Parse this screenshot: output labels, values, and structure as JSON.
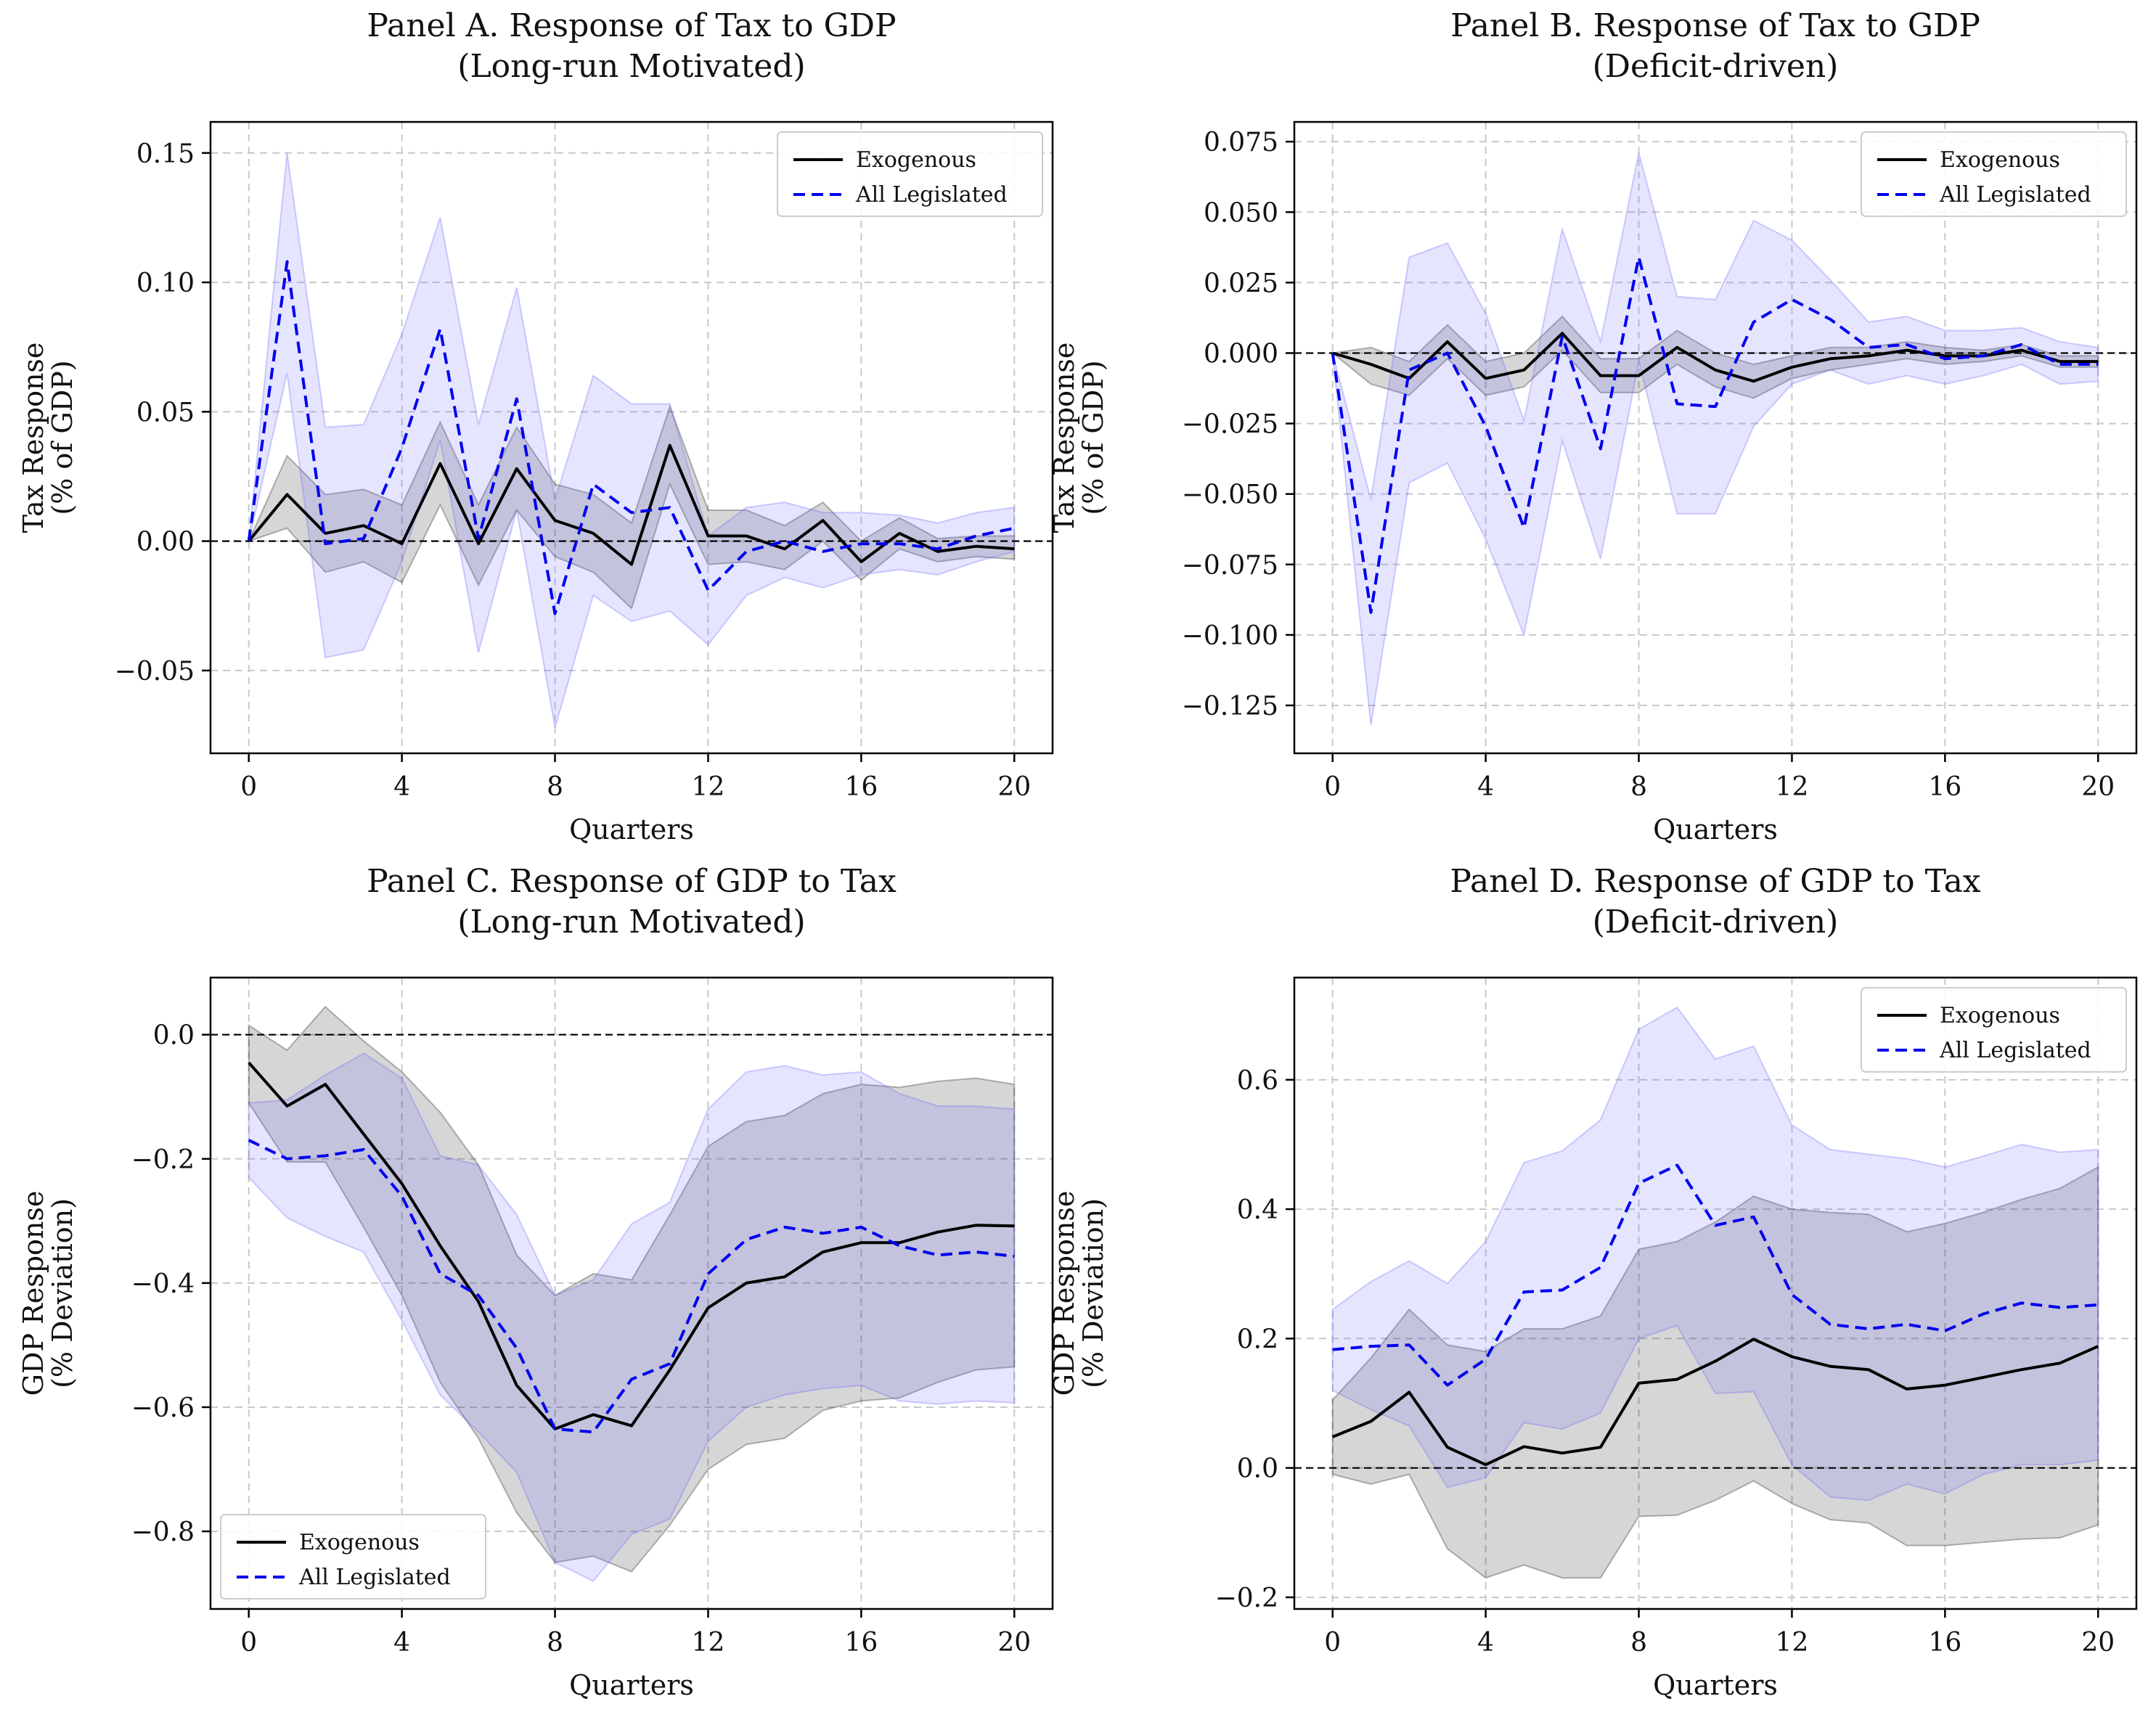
{
  "chart_data": [
    {
      "type": "line",
      "title": [
        "Panel A. Response of Tax to GDP",
        "(Long-run Motivated)"
      ],
      "xlabel": "Quarters",
      "ylabel": [
        "Tax Response",
        "(% of GDP)"
      ],
      "xlim": [
        -1,
        21
      ],
      "ylim": [
        -0.082,
        0.162
      ],
      "xticks": [
        0,
        4,
        8,
        12,
        16,
        20
      ],
      "yticks": [
        -0.05,
        0.0,
        0.05,
        0.1,
        0.15
      ],
      "yticklabels": [
        "−0.05",
        "0.00",
        "0.05",
        "0.10",
        "0.15"
      ],
      "grid": true,
      "legend": "upper right",
      "x": [
        0,
        1,
        2,
        3,
        4,
        5,
        6,
        7,
        8,
        9,
        10,
        11,
        12,
        13,
        14,
        15,
        16,
        17,
        18,
        19,
        20
      ],
      "series": [
        {
          "name": "Exogenous",
          "color": "#000000",
          "dash": "solid",
          "values": [
            0,
            0.018,
            0.003,
            0.006,
            -0.001,
            0.03,
            -0.001,
            0.028,
            0.008,
            0.003,
            -0.009,
            0.037,
            0.002,
            0.002,
            -0.003,
            0.008,
            -0.008,
            0.003,
            -0.004,
            -0.002,
            -0.003
          ],
          "lower": [
            0,
            0.005,
            -0.012,
            -0.008,
            -0.016,
            0.014,
            -0.017,
            0.012,
            -0.006,
            -0.012,
            -0.026,
            0.022,
            -0.009,
            -0.008,
            -0.011,
            0.0,
            -0.015,
            -0.003,
            -0.008,
            -0.006,
            -0.007
          ],
          "upper": [
            0,
            0.033,
            0.018,
            0.02,
            0.014,
            0.046,
            0.014,
            0.044,
            0.022,
            0.018,
            0.007,
            0.052,
            0.012,
            0.012,
            0.006,
            0.015,
            0.0,
            0.009,
            0.001,
            0.002,
            0.002
          ]
        },
        {
          "name": "All Legislated",
          "color": "#0000ee",
          "dash": "dashed",
          "values": [
            0,
            0.108,
            -0.001,
            0.001,
            0.036,
            0.082,
            0.001,
            0.055,
            -0.028,
            0.022,
            0.011,
            0.013,
            -0.019,
            -0.004,
            0.0,
            -0.004,
            -0.001,
            -0.001,
            -0.003,
            0.002,
            0.005
          ],
          "lower": [
            0,
            0.065,
            -0.045,
            -0.042,
            -0.008,
            0.039,
            -0.043,
            0.012,
            -0.072,
            -0.021,
            -0.031,
            -0.027,
            -0.04,
            -0.021,
            -0.014,
            -0.018,
            -0.013,
            -0.011,
            -0.013,
            -0.008,
            -0.004
          ],
          "upper": [
            0,
            0.15,
            0.044,
            0.045,
            0.08,
            0.125,
            0.045,
            0.098,
            0.016,
            0.064,
            0.053,
            0.053,
            0.002,
            0.013,
            0.015,
            0.011,
            0.011,
            0.01,
            0.007,
            0.011,
            0.013
          ]
        }
      ]
    },
    {
      "type": "line",
      "title": [
        "Panel B. Response of Tax to GDP",
        "(Deficit-driven)"
      ],
      "xlabel": "Quarters",
      "ylabel": [
        "Tax Response",
        "(% of GDP)"
      ],
      "xlim": [
        -1,
        21
      ],
      "ylim": [
        -0.142,
        0.082
      ],
      "xticks": [
        0,
        4,
        8,
        12,
        16,
        20
      ],
      "yticks": [
        -0.125,
        -0.1,
        -0.075,
        -0.05,
        -0.025,
        0.0,
        0.025,
        0.05,
        0.075
      ],
      "yticklabels": [
        "−0.125",
        "−0.100",
        "−0.075",
        "−0.050",
        "−0.025",
        "0.000",
        "0.025",
        "0.050",
        "0.075"
      ],
      "grid": true,
      "legend": "upper right",
      "x": [
        0,
        1,
        2,
        3,
        4,
        5,
        6,
        7,
        8,
        9,
        10,
        11,
        12,
        13,
        14,
        15,
        16,
        17,
        18,
        19,
        20
      ],
      "series": [
        {
          "name": "Exogenous",
          "color": "#000000",
          "dash": "solid",
          "values": [
            0,
            -0.004,
            -0.009,
            0.004,
            -0.009,
            -0.006,
            0.007,
            -0.008,
            -0.008,
            0.002,
            -0.006,
            -0.01,
            -0.005,
            -0.002,
            -0.001,
            0.001,
            -0.001,
            -0.001,
            0.001,
            -0.003,
            -0.003
          ],
          "lower": [
            0,
            -0.011,
            -0.015,
            -0.002,
            -0.015,
            -0.012,
            0.001,
            -0.014,
            -0.014,
            -0.004,
            -0.012,
            -0.016,
            -0.009,
            -0.006,
            -0.004,
            -0.002,
            -0.004,
            -0.003,
            -0.001,
            -0.005,
            -0.005
          ],
          "upper": [
            0,
            0.002,
            -0.003,
            0.01,
            -0.003,
            0.0,
            0.013,
            -0.002,
            -0.002,
            0.008,
            0.0,
            -0.004,
            -0.001,
            0.002,
            0.002,
            0.004,
            0.002,
            0.001,
            0.003,
            -0.001,
            -0.001
          ]
        },
        {
          "name": "All Legislated",
          "color": "#0000ee",
          "dash": "dashed",
          "values": [
            0,
            -0.092,
            -0.006,
            0.0,
            -0.026,
            -0.062,
            0.006,
            -0.034,
            0.034,
            -0.018,
            -0.019,
            0.011,
            0.019,
            0.012,
            0.002,
            0.003,
            -0.002,
            -0.001,
            0.003,
            -0.004,
            -0.004
          ],
          "lower": [
            0,
            -0.132,
            -0.046,
            -0.039,
            -0.066,
            -0.1,
            -0.031,
            -0.073,
            -0.003,
            -0.057,
            -0.057,
            -0.026,
            -0.011,
            -0.006,
            -0.011,
            -0.008,
            -0.011,
            -0.008,
            -0.004,
            -0.011,
            -0.01
          ],
          "upper": [
            0,
            -0.052,
            0.034,
            0.039,
            0.014,
            -0.024,
            0.044,
            0.004,
            0.071,
            0.02,
            0.019,
            0.047,
            0.04,
            0.026,
            0.011,
            0.013,
            0.008,
            0.008,
            0.009,
            0.004,
            0.002
          ]
        }
      ]
    },
    {
      "type": "line",
      "title": [
        "Panel C. Response of GDP to Tax",
        "(Long-run Motivated)"
      ],
      "xlabel": "Quarters",
      "ylabel": [
        "GDP Response",
        "(% Deviation)"
      ],
      "xlim": [
        -1,
        21
      ],
      "ylim": [
        -0.925,
        0.092
      ],
      "xticks": [
        0,
        4,
        8,
        12,
        16,
        20
      ],
      "yticks": [
        -0.8,
        -0.6,
        -0.4,
        -0.2,
        0.0
      ],
      "yticklabels": [
        "−0.8",
        "−0.6",
        "−0.4",
        "−0.2",
        "0.0"
      ],
      "grid": true,
      "legend": "lower left",
      "x": [
        0,
        1,
        2,
        3,
        4,
        5,
        6,
        7,
        8,
        9,
        10,
        11,
        12,
        13,
        14,
        15,
        16,
        17,
        18,
        19,
        20
      ],
      "series": [
        {
          "name": "Exogenous",
          "color": "#000000",
          "dash": "solid",
          "values": [
            -0.045,
            -0.115,
            -0.08,
            -0.16,
            -0.24,
            -0.34,
            -0.43,
            -0.565,
            -0.635,
            -0.612,
            -0.63,
            -0.54,
            -0.44,
            -0.4,
            -0.39,
            -0.35,
            -0.335,
            -0.335,
            -0.318,
            -0.307,
            -0.308
          ],
          "lower": [
            -0.11,
            -0.205,
            -0.205,
            -0.31,
            -0.42,
            -0.56,
            -0.65,
            -0.77,
            -0.85,
            -0.84,
            -0.865,
            -0.79,
            -0.7,
            -0.66,
            -0.65,
            -0.605,
            -0.59,
            -0.585,
            -0.56,
            -0.54,
            -0.535
          ],
          "upper": [
            0.015,
            -0.025,
            0.045,
            -0.01,
            -0.06,
            -0.125,
            -0.21,
            -0.355,
            -0.42,
            -0.385,
            -0.395,
            -0.29,
            -0.18,
            -0.14,
            -0.13,
            -0.095,
            -0.08,
            -0.085,
            -0.075,
            -0.07,
            -0.08
          ]
        },
        {
          "name": "All Legislated",
          "color": "#0000ee",
          "dash": "dashed",
          "values": [
            -0.17,
            -0.2,
            -0.195,
            -0.185,
            -0.26,
            -0.385,
            -0.42,
            -0.505,
            -0.635,
            -0.64,
            -0.555,
            -0.53,
            -0.385,
            -0.33,
            -0.31,
            -0.32,
            -0.31,
            -0.34,
            -0.355,
            -0.35,
            -0.357
          ],
          "lower": [
            -0.23,
            -0.295,
            -0.325,
            -0.35,
            -0.46,
            -0.58,
            -0.64,
            -0.705,
            -0.85,
            -0.88,
            -0.805,
            -0.78,
            -0.655,
            -0.6,
            -0.58,
            -0.57,
            -0.565,
            -0.59,
            -0.595,
            -0.59,
            -0.593
          ],
          "upper": [
            -0.11,
            -0.105,
            -0.065,
            -0.03,
            -0.07,
            -0.195,
            -0.21,
            -0.29,
            -0.42,
            -0.395,
            -0.305,
            -0.27,
            -0.12,
            -0.06,
            -0.05,
            -0.065,
            -0.06,
            -0.095,
            -0.115,
            -0.115,
            -0.12
          ]
        }
      ]
    },
    {
      "type": "line",
      "title": [
        "Panel D. Response of GDP to Tax",
        "(Deficit-driven)"
      ],
      "xlabel": "Quarters",
      "ylabel": [
        "GDP Response",
        "(% Deviation)"
      ],
      "xlim": [
        -1,
        21
      ],
      "ylim": [
        -0.218,
        0.758
      ],
      "xticks": [
        0,
        4,
        8,
        12,
        16,
        20
      ],
      "yticks": [
        -0.2,
        0.0,
        0.2,
        0.4,
        0.6
      ],
      "yticklabels": [
        "−0.2",
        "0.0",
        "0.2",
        "0.4",
        "0.6"
      ],
      "grid": true,
      "legend": "upper right",
      "x": [
        0,
        1,
        2,
        3,
        4,
        5,
        6,
        7,
        8,
        9,
        10,
        11,
        12,
        13,
        14,
        15,
        16,
        17,
        18,
        19,
        20
      ],
      "series": [
        {
          "name": "Exogenous",
          "color": "#000000",
          "dash": "solid",
          "values": [
            0.048,
            0.072,
            0.117,
            0.032,
            0.005,
            0.033,
            0.023,
            0.032,
            0.131,
            0.137,
            0.165,
            0.199,
            0.172,
            0.157,
            0.152,
            0.122,
            0.128,
            0.14,
            0.152,
            0.162,
            0.188
          ],
          "lower": [
            -0.01,
            -0.025,
            -0.01,
            -0.125,
            -0.17,
            -0.15,
            -0.17,
            -0.17,
            -0.075,
            -0.073,
            -0.05,
            -0.02,
            -0.055,
            -0.08,
            -0.085,
            -0.12,
            -0.12,
            -0.115,
            -0.11,
            -0.108,
            -0.088
          ],
          "upper": [
            0.105,
            0.17,
            0.245,
            0.19,
            0.18,
            0.215,
            0.215,
            0.235,
            0.338,
            0.35,
            0.38,
            0.42,
            0.4,
            0.395,
            0.392,
            0.365,
            0.378,
            0.395,
            0.415,
            0.432,
            0.465
          ]
        },
        {
          "name": "All Legislated",
          "color": "#0000ee",
          "dash": "dashed",
          "values": [
            0.183,
            0.188,
            0.19,
            0.128,
            0.168,
            0.272,
            0.275,
            0.31,
            0.44,
            0.468,
            0.375,
            0.388,
            0.268,
            0.222,
            0.215,
            0.222,
            0.212,
            0.238,
            0.255,
            0.248,
            0.252
          ],
          "lower": [
            0.12,
            0.09,
            0.065,
            -0.03,
            -0.015,
            0.07,
            0.06,
            0.085,
            0.2,
            0.22,
            0.115,
            0.118,
            0.005,
            -0.045,
            -0.05,
            -0.025,
            -0.04,
            -0.01,
            0.005,
            0.005,
            0.012
          ],
          "upper": [
            0.245,
            0.288,
            0.32,
            0.285,
            0.35,
            0.472,
            0.49,
            0.538,
            0.678,
            0.712,
            0.632,
            0.652,
            0.53,
            0.492,
            0.485,
            0.478,
            0.465,
            0.482,
            0.5,
            0.488,
            0.492
          ]
        }
      ]
    }
  ]
}
